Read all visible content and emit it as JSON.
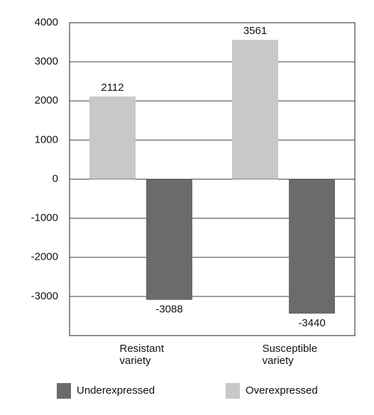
{
  "chart_data": {
    "type": "bar",
    "categories": [
      "Resistant variety",
      "Susceptible variety"
    ],
    "series": [
      {
        "name": "Underexpressed",
        "color": "#6b6b6b",
        "values": [
          -3088,
          -3440
        ]
      },
      {
        "name": "Overexpressed",
        "color": "#c8c8c8",
        "values": [
          2112,
          3561
        ]
      }
    ],
    "ylim": [
      -4000,
      4000
    ],
    "yticks": [
      -3000,
      -2000,
      -1000,
      0,
      1000,
      2000,
      3000,
      4000
    ],
    "grid": true
  }
}
